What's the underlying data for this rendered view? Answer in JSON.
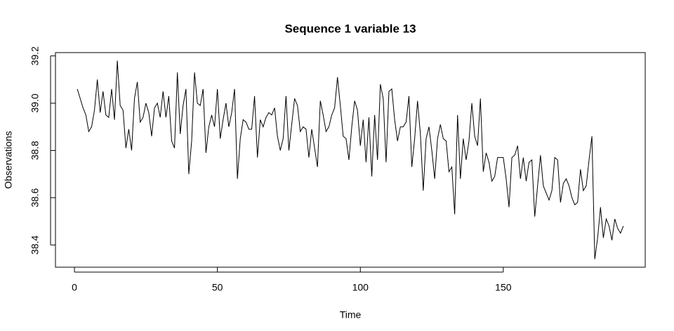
{
  "chart_data": {
    "type": "line",
    "title": "Sequence  1  variable  13",
    "xlabel": "Time",
    "ylabel": "Observations",
    "color": "#000000",
    "x": [
      1,
      2,
      3,
      4,
      5,
      6,
      7,
      8,
      9,
      10,
      11,
      12,
      13,
      14,
      15,
      16,
      17,
      18,
      19,
      20,
      21,
      22,
      23,
      24,
      25,
      26,
      27,
      28,
      29,
      30,
      31,
      32,
      33,
      34,
      35,
      36,
      37,
      38,
      39,
      40,
      41,
      42,
      43,
      44,
      45,
      46,
      47,
      48,
      49,
      50,
      51,
      52,
      53,
      54,
      55,
      56,
      57,
      58,
      59,
      60,
      61,
      62,
      63,
      64,
      65,
      66,
      67,
      68,
      69,
      70,
      71,
      72,
      73,
      74,
      75,
      76,
      77,
      78,
      79,
      80,
      81,
      82,
      83,
      84,
      85,
      86,
      87,
      88,
      89,
      90,
      91,
      92,
      93,
      94,
      95,
      96,
      97,
      98,
      99,
      100,
      101,
      102,
      103,
      104,
      105,
      106,
      107,
      108,
      109,
      110,
      111,
      112,
      113,
      114,
      115,
      116,
      117,
      118,
      119,
      120,
      121,
      122,
      123,
      124,
      125,
      126,
      127,
      128,
      129,
      130,
      131,
      132,
      133,
      134,
      135,
      136,
      137,
      138,
      139,
      140,
      141,
      142,
      143,
      144,
      145,
      146,
      147,
      148,
      149,
      150,
      151,
      152,
      153,
      154,
      155,
      156,
      157,
      158,
      159,
      160,
      161,
      162,
      163,
      164,
      165,
      166,
      167,
      168,
      169,
      170,
      171,
      172,
      173,
      174,
      175,
      176,
      177,
      178,
      179,
      180,
      181,
      182,
      183,
      184,
      185,
      186,
      187,
      188,
      189,
      190,
      191,
      192
    ],
    "values": [
      39.06,
      39.02,
      38.98,
      38.95,
      38.88,
      38.9,
      38.97,
      39.1,
      38.96,
      39.05,
      38.95,
      38.94,
      39.06,
      38.93,
      39.18,
      38.99,
      38.97,
      38.81,
      38.89,
      38.8,
      39.02,
      39.09,
      38.92,
      38.94,
      39.0,
      38.96,
      38.86,
      38.98,
      39.0,
      38.94,
      39.05,
      38.94,
      39.03,
      38.84,
      38.81,
      39.13,
      38.87,
      38.99,
      39.06,
      38.7,
      38.84,
      39.13,
      39.0,
      38.99,
      39.06,
      38.79,
      38.9,
      38.95,
      38.9,
      39.06,
      38.85,
      38.93,
      39.0,
      38.9,
      38.96,
      39.06,
      38.68,
      38.85,
      38.93,
      38.92,
      38.89,
      38.89,
      39.03,
      38.77,
      38.93,
      38.9,
      38.94,
      38.96,
      38.95,
      38.98,
      38.86,
      38.8,
      38.85,
      39.03,
      38.8,
      38.91,
      39.02,
      38.99,
      38.88,
      38.9,
      38.89,
      38.77,
      38.89,
      38.81,
      38.73,
      39.01,
      38.95,
      38.88,
      38.9,
      38.95,
      38.98,
      39.11,
      38.99,
      38.86,
      38.85,
      38.76,
      38.9,
      39.01,
      38.97,
      38.82,
      38.93,
      38.75,
      38.94,
      38.69,
      38.95,
      38.76,
      39.08,
      39.02,
      38.75,
      39.05,
      39.06,
      38.93,
      38.84,
      38.9,
      38.9,
      38.92,
      39.03,
      38.73,
      38.85,
      39.01,
      38.87,
      38.63,
      38.85,
      38.9,
      38.8,
      38.68,
      38.85,
      38.91,
      38.85,
      38.84,
      38.71,
      38.73,
      38.53,
      38.95,
      38.68,
      38.85,
      38.76,
      38.84,
      39.0,
      38.86,
      38.82,
      39.02,
      38.71,
      38.79,
      38.75,
      38.67,
      38.69,
      38.77,
      38.77,
      38.77,
      38.68,
      38.56,
      38.77,
      38.78,
      38.82,
      38.68,
      38.77,
      38.67,
      38.75,
      38.76,
      38.52,
      38.65,
      38.78,
      38.65,
      38.62,
      38.59,
      38.63,
      38.77,
      38.76,
      38.58,
      38.66,
      38.68,
      38.65,
      38.6,
      38.57,
      38.58,
      38.72,
      38.63,
      38.65,
      38.76,
      38.86,
      38.34,
      38.43,
      38.56,
      38.43,
      38.51,
      38.48,
      38.42,
      38.51,
      38.47,
      38.45,
      38.48
    ],
    "xlim": [
      -6.64,
      199.64
    ],
    "xticks": [
      0,
      50,
      100,
      150
    ],
    "ylim": [
      38.306,
      39.214
    ],
    "yticks": [
      38.4,
      38.6,
      38.8,
      {
        "value": 39,
        "label": "39.0"
      },
      39.2
    ]
  }
}
